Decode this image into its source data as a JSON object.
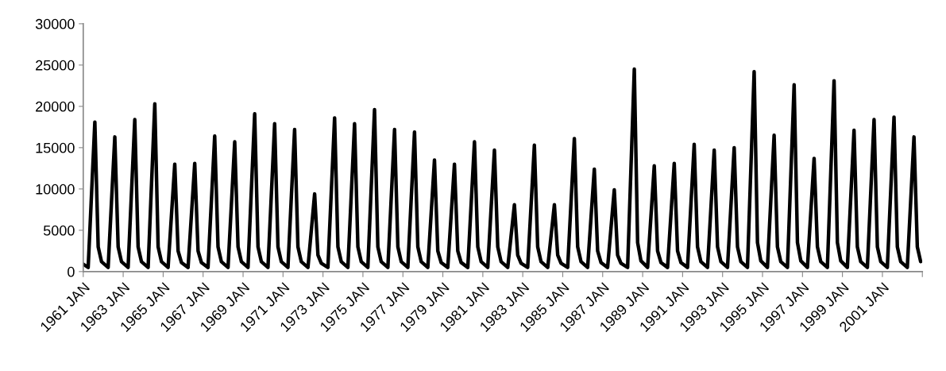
{
  "chart_data": {
    "type": "line",
    "x": [
      "1961-01",
      "1961-04",
      "1961-08",
      "1961-10",
      "1961-12",
      "1962-04",
      "1962-08",
      "1962-10",
      "1962-12",
      "1963-04",
      "1963-08",
      "1963-10",
      "1963-12",
      "1964-04",
      "1964-08",
      "1964-10",
      "1964-12",
      "1965-04",
      "1965-08",
      "1965-10",
      "1965-12",
      "1966-04",
      "1966-08",
      "1966-10",
      "1966-12",
      "1967-04",
      "1967-08",
      "1967-10",
      "1967-12",
      "1968-04",
      "1968-08",
      "1968-10",
      "1968-12",
      "1969-04",
      "1969-08",
      "1969-10",
      "1969-12",
      "1970-04",
      "1970-08",
      "1970-10",
      "1970-12",
      "1971-04",
      "1971-08",
      "1971-10",
      "1971-12",
      "1972-04",
      "1972-08",
      "1972-10",
      "1972-12",
      "1973-04",
      "1973-08",
      "1973-10",
      "1973-12",
      "1974-04",
      "1974-08",
      "1974-10",
      "1974-12",
      "1975-04",
      "1975-08",
      "1975-10",
      "1975-12",
      "1976-04",
      "1976-08",
      "1976-10",
      "1976-12",
      "1977-04",
      "1977-08",
      "1977-10",
      "1977-12",
      "1978-04",
      "1978-08",
      "1978-10",
      "1978-12",
      "1979-04",
      "1979-08",
      "1979-10",
      "1979-12",
      "1980-04",
      "1980-08",
      "1980-10",
      "1980-12",
      "1981-04",
      "1981-08",
      "1981-10",
      "1981-12",
      "1982-04",
      "1982-08",
      "1982-10",
      "1982-12",
      "1983-04",
      "1983-08",
      "1983-10",
      "1983-12",
      "1984-04",
      "1984-08",
      "1984-10",
      "1984-12",
      "1985-04",
      "1985-08",
      "1985-10",
      "1985-12",
      "1986-04",
      "1986-08",
      "1986-10",
      "1986-12",
      "1987-04",
      "1987-08",
      "1987-10",
      "1987-12",
      "1988-04",
      "1988-08",
      "1988-10",
      "1988-12",
      "1989-04",
      "1989-08",
      "1989-10",
      "1989-12",
      "1990-04",
      "1990-08",
      "1990-10",
      "1990-12",
      "1991-04",
      "1991-08",
      "1991-10",
      "1991-12",
      "1992-04",
      "1992-08",
      "1992-10",
      "1992-12",
      "1993-04",
      "1993-08",
      "1993-10",
      "1993-12",
      "1994-04",
      "1994-08",
      "1994-10",
      "1994-12",
      "1995-04",
      "1995-08",
      "1995-10",
      "1995-12",
      "1996-04",
      "1996-08",
      "1996-10",
      "1996-12",
      "1997-04",
      "1997-08",
      "1997-10",
      "1997-12",
      "1998-04",
      "1998-08",
      "1998-10",
      "1998-12",
      "1999-04",
      "1999-08",
      "1999-10",
      "1999-12",
      "2000-04",
      "2000-08",
      "2000-10",
      "2000-12",
      "2001-04",
      "2001-08",
      "2001-10",
      "2001-12",
      "2002-04",
      "2002-08",
      "2002-10",
      "2002-12"
    ],
    "series": [
      {
        "color": "#000000",
        "values": [
          900,
          500,
          18100,
          3000,
          1200,
          500,
          16300,
          3000,
          1200,
          500,
          18400,
          3000,
          1200,
          500,
          20300,
          3000,
          1200,
          500,
          13000,
          2500,
          1100,
          500,
          13100,
          2500,
          1100,
          500,
          16400,
          3000,
          1200,
          500,
          15700,
          3000,
          1200,
          500,
          19100,
          3000,
          1200,
          500,
          17900,
          3000,
          1200,
          500,
          17200,
          3000,
          1200,
          500,
          9400,
          2000,
          1000,
          500,
          18600,
          3000,
          1200,
          500,
          17900,
          3000,
          1200,
          500,
          19600,
          3000,
          1200,
          500,
          17200,
          3000,
          1200,
          500,
          16900,
          3000,
          1200,
          500,
          13500,
          2500,
          1100,
          500,
          13000,
          2500,
          1100,
          500,
          15700,
          3000,
          1200,
          500,
          14700,
          3000,
          1200,
          500,
          8100,
          2000,
          1000,
          500,
          15300,
          3000,
          1200,
          500,
          8100,
          2000,
          1000,
          500,
          16100,
          3000,
          1200,
          500,
          12400,
          2500,
          1100,
          500,
          9900,
          2000,
          1000,
          500,
          24500,
          3500,
          1300,
          500,
          12800,
          2500,
          1100,
          500,
          13100,
          2500,
          1100,
          500,
          15400,
          3000,
          1200,
          500,
          14700,
          3000,
          1200,
          500,
          15000,
          3000,
          1200,
          500,
          24200,
          3500,
          1300,
          500,
          16500,
          3000,
          1200,
          500,
          22600,
          3500,
          1300,
          500,
          13700,
          3000,
          1200,
          500,
          23100,
          3500,
          1300,
          500,
          17100,
          3000,
          1200,
          500,
          18400,
          3000,
          1200,
          500,
          18700,
          3000,
          1200,
          500,
          16300,
          3000,
          1200
        ]
      }
    ],
    "xlim": [
      "1961-01",
      "2003-01"
    ],
    "xticks": [
      {
        "value": "1961-01",
        "label": "1961 JAN"
      },
      {
        "value": "1963-01",
        "label": "1963 JAN"
      },
      {
        "value": "1965-01",
        "label": "1965 JAN"
      },
      {
        "value": "1967-01",
        "label": "1967 JAN"
      },
      {
        "value": "1969-01",
        "label": "1969 JAN"
      },
      {
        "value": "1971-01",
        "label": "1971 JAN"
      },
      {
        "value": "1973-01",
        "label": "1973 JAN"
      },
      {
        "value": "1975-01",
        "label": "1975 JAN"
      },
      {
        "value": "1977-01",
        "label": "1977 JAN"
      },
      {
        "value": "1979-01",
        "label": "1979 JAN"
      },
      {
        "value": "1981-01",
        "label": "1981 JAN"
      },
      {
        "value": "1983-01",
        "label": "1983 JAN"
      },
      {
        "value": "1985-01",
        "label": "1985 JAN"
      },
      {
        "value": "1987-01",
        "label": "1987 JAN"
      },
      {
        "value": "1989-01",
        "label": "1989 JAN"
      },
      {
        "value": "1991-01",
        "label": "1991 JAN"
      },
      {
        "value": "1993-01",
        "label": "1993 JAN"
      },
      {
        "value": "1995-01",
        "label": "1995 JAN"
      },
      {
        "value": "1997-01",
        "label": "1997 JAN"
      },
      {
        "value": "1999-01",
        "label": "1999 JAN"
      },
      {
        "value": "2001-01",
        "label": "2001 JAN"
      },
      {
        "value": "2003-01",
        "label": null
      }
    ],
    "ylim": [
      0,
      30000
    ],
    "yticks": [
      0,
      5000,
      10000,
      15000,
      20000,
      25000,
      30000
    ],
    "marker": "none",
    "line_style": "solid"
  }
}
